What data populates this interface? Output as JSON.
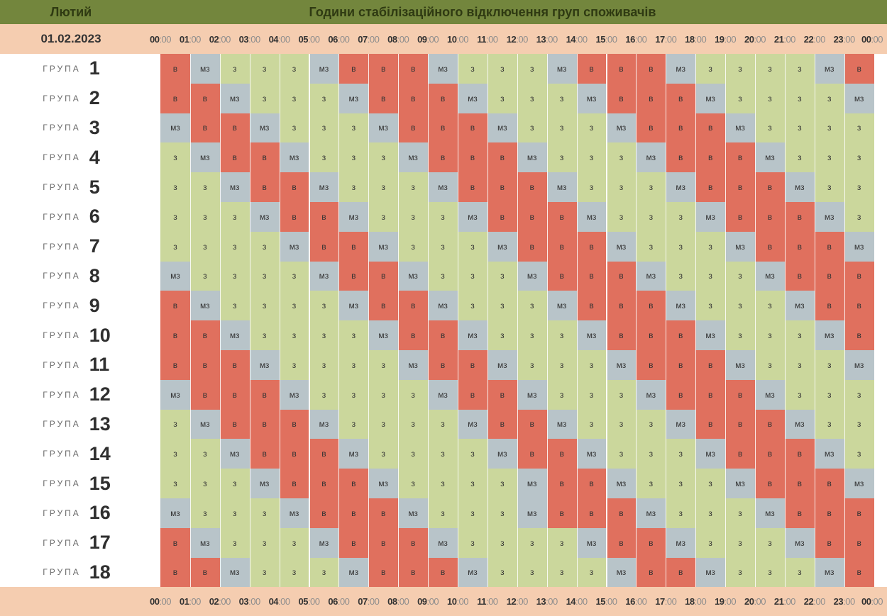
{
  "header": {
    "month": "Лютий",
    "title": "Години стабілізаційного відключення груп споживачів"
  },
  "date": "01.02.2023",
  "times": [
    {
      "h": "00",
      "m": ":00"
    },
    {
      "h": "01",
      "m": ":00"
    },
    {
      "h": "02",
      "m": ":00"
    },
    {
      "h": "03",
      "m": ":00"
    },
    {
      "h": "04",
      "m": ":00"
    },
    {
      "h": "05",
      "m": ":00"
    },
    {
      "h": "06",
      "m": ":00"
    },
    {
      "h": "07",
      "m": ":00"
    },
    {
      "h": "08",
      "m": ":00"
    },
    {
      "h": "09",
      "m": ":00"
    },
    {
      "h": "10",
      "m": ":00"
    },
    {
      "h": "11",
      "m": ":00"
    },
    {
      "h": "12",
      "m": ":00"
    },
    {
      "h": "13",
      "m": ":00"
    },
    {
      "h": "14",
      "m": ":00"
    },
    {
      "h": "15",
      "m": ":00"
    },
    {
      "h": "16",
      "m": ":00"
    },
    {
      "h": "17",
      "m": ":00"
    },
    {
      "h": "18",
      "m": ":00"
    },
    {
      "h": "19",
      "m": ":00"
    },
    {
      "h": "20",
      "m": ":00"
    },
    {
      "h": "21",
      "m": ":00"
    },
    {
      "h": "22",
      "m": ":00"
    },
    {
      "h": "23",
      "m": ":00"
    },
    {
      "h": "00",
      "m": ":00"
    }
  ],
  "group_word": "ГРУПА",
  "colors": {
    "В": "#e0705e",
    "МЗ": "#b8c4c9",
    "З": "#cbd79c"
  },
  "groups": [
    {
      "number": "1",
      "slots": [
        "В",
        "МЗ",
        "З",
        "З",
        "З",
        "МЗ",
        "В",
        "В",
        "В",
        "МЗ",
        "З",
        "З",
        "З",
        "МЗ",
        "В",
        "В",
        "В",
        "МЗ",
        "З",
        "З",
        "З",
        "З",
        "МЗ",
        "В"
      ]
    },
    {
      "number": "2",
      "slots": [
        "В",
        "В",
        "МЗ",
        "З",
        "З",
        "З",
        "МЗ",
        "В",
        "В",
        "В",
        "МЗ",
        "З",
        "З",
        "З",
        "МЗ",
        "В",
        "В",
        "В",
        "МЗ",
        "З",
        "З",
        "З",
        "З",
        "МЗ"
      ]
    },
    {
      "number": "3",
      "slots": [
        "МЗ",
        "В",
        "В",
        "МЗ",
        "З",
        "З",
        "З",
        "МЗ",
        "В",
        "В",
        "В",
        "МЗ",
        "З",
        "З",
        "З",
        "МЗ",
        "В",
        "В",
        "В",
        "МЗ",
        "З",
        "З",
        "З",
        "З"
      ]
    },
    {
      "number": "4",
      "slots": [
        "З",
        "МЗ",
        "В",
        "В",
        "МЗ",
        "З",
        "З",
        "З",
        "МЗ",
        "В",
        "В",
        "В",
        "МЗ",
        "З",
        "З",
        "З",
        "МЗ",
        "В",
        "В",
        "В",
        "МЗ",
        "З",
        "З",
        "З"
      ]
    },
    {
      "number": "5",
      "slots": [
        "З",
        "З",
        "МЗ",
        "В",
        "В",
        "МЗ",
        "З",
        "З",
        "З",
        "МЗ",
        "В",
        "В",
        "В",
        "МЗ",
        "З",
        "З",
        "З",
        "МЗ",
        "В",
        "В",
        "В",
        "МЗ",
        "З",
        "З"
      ]
    },
    {
      "number": "6",
      "slots": [
        "З",
        "З",
        "З",
        "МЗ",
        "В",
        "В",
        "МЗ",
        "З",
        "З",
        "З",
        "МЗ",
        "В",
        "В",
        "В",
        "МЗ",
        "З",
        "З",
        "З",
        "МЗ",
        "В",
        "В",
        "В",
        "МЗ",
        "З"
      ]
    },
    {
      "number": "7",
      "slots": [
        "З",
        "З",
        "З",
        "З",
        "МЗ",
        "В",
        "В",
        "МЗ",
        "З",
        "З",
        "З",
        "МЗ",
        "В",
        "В",
        "В",
        "МЗ",
        "З",
        "З",
        "З",
        "МЗ",
        "В",
        "В",
        "В",
        "МЗ"
      ]
    },
    {
      "number": "8",
      "slots": [
        "МЗ",
        "З",
        "З",
        "З",
        "З",
        "МЗ",
        "В",
        "В",
        "МЗ",
        "З",
        "З",
        "З",
        "МЗ",
        "В",
        "В",
        "В",
        "МЗ",
        "З",
        "З",
        "З",
        "МЗ",
        "В",
        "В",
        "В"
      ]
    },
    {
      "number": "9",
      "slots": [
        "В",
        "МЗ",
        "З",
        "З",
        "З",
        "З",
        "МЗ",
        "В",
        "В",
        "МЗ",
        "З",
        "З",
        "З",
        "МЗ",
        "В",
        "В",
        "В",
        "МЗ",
        "З",
        "З",
        "З",
        "МЗ",
        "В",
        "В"
      ]
    },
    {
      "number": "10",
      "slots": [
        "В",
        "В",
        "МЗ",
        "З",
        "З",
        "З",
        "З",
        "МЗ",
        "В",
        "В",
        "МЗ",
        "З",
        "З",
        "З",
        "МЗ",
        "В",
        "В",
        "В",
        "МЗ",
        "З",
        "З",
        "З",
        "МЗ",
        "В"
      ]
    },
    {
      "number": "11",
      "slots": [
        "В",
        "В",
        "В",
        "МЗ",
        "З",
        "З",
        "З",
        "З",
        "МЗ",
        "В",
        "В",
        "МЗ",
        "З",
        "З",
        "З",
        "МЗ",
        "В",
        "В",
        "В",
        "МЗ",
        "З",
        "З",
        "З",
        "МЗ"
      ]
    },
    {
      "number": "12",
      "slots": [
        "МЗ",
        "В",
        "В",
        "В",
        "МЗ",
        "З",
        "З",
        "З",
        "З",
        "МЗ",
        "В",
        "В",
        "МЗ",
        "З",
        "З",
        "З",
        "МЗ",
        "В",
        "В",
        "В",
        "МЗ",
        "З",
        "З",
        "З"
      ]
    },
    {
      "number": "13",
      "slots": [
        "З",
        "МЗ",
        "В",
        "В",
        "В",
        "МЗ",
        "З",
        "З",
        "З",
        "З",
        "МЗ",
        "В",
        "В",
        "МЗ",
        "З",
        "З",
        "З",
        "МЗ",
        "В",
        "В",
        "В",
        "МЗ",
        "З",
        "З"
      ]
    },
    {
      "number": "14",
      "slots": [
        "З",
        "З",
        "МЗ",
        "В",
        "В",
        "В",
        "МЗ",
        "З",
        "З",
        "З",
        "З",
        "МЗ",
        "В",
        "В",
        "МЗ",
        "З",
        "З",
        "З",
        "МЗ",
        "В",
        "В",
        "В",
        "МЗ",
        "З"
      ]
    },
    {
      "number": "15",
      "slots": [
        "З",
        "З",
        "З",
        "МЗ",
        "В",
        "В",
        "В",
        "МЗ",
        "З",
        "З",
        "З",
        "З",
        "МЗ",
        "В",
        "В",
        "МЗ",
        "З",
        "З",
        "З",
        "МЗ",
        "В",
        "В",
        "В",
        "МЗ"
      ]
    },
    {
      "number": "16",
      "slots": [
        "МЗ",
        "З",
        "З",
        "З",
        "МЗ",
        "В",
        "В",
        "В",
        "МЗ",
        "З",
        "З",
        "З",
        "МЗ",
        "В",
        "В",
        "В",
        "МЗ",
        "З",
        "З",
        "З",
        "МЗ",
        "В",
        "В",
        "В"
      ]
    },
    {
      "number": "17",
      "slots": [
        "В",
        "МЗ",
        "З",
        "З",
        "З",
        "МЗ",
        "В",
        "В",
        "В",
        "МЗ",
        "З",
        "З",
        "З",
        "З",
        "МЗ",
        "В",
        "В",
        "МЗ",
        "З",
        "З",
        "З",
        "МЗ",
        "В",
        "В"
      ]
    },
    {
      "number": "18",
      "slots": [
        "В",
        "В",
        "МЗ",
        "З",
        "З",
        "З",
        "МЗ",
        "В",
        "В",
        "В",
        "МЗ",
        "З",
        "З",
        "З",
        "З",
        "МЗ",
        "В",
        "В",
        "МЗ",
        "З",
        "З",
        "З",
        "МЗ",
        "В"
      ]
    }
  ]
}
